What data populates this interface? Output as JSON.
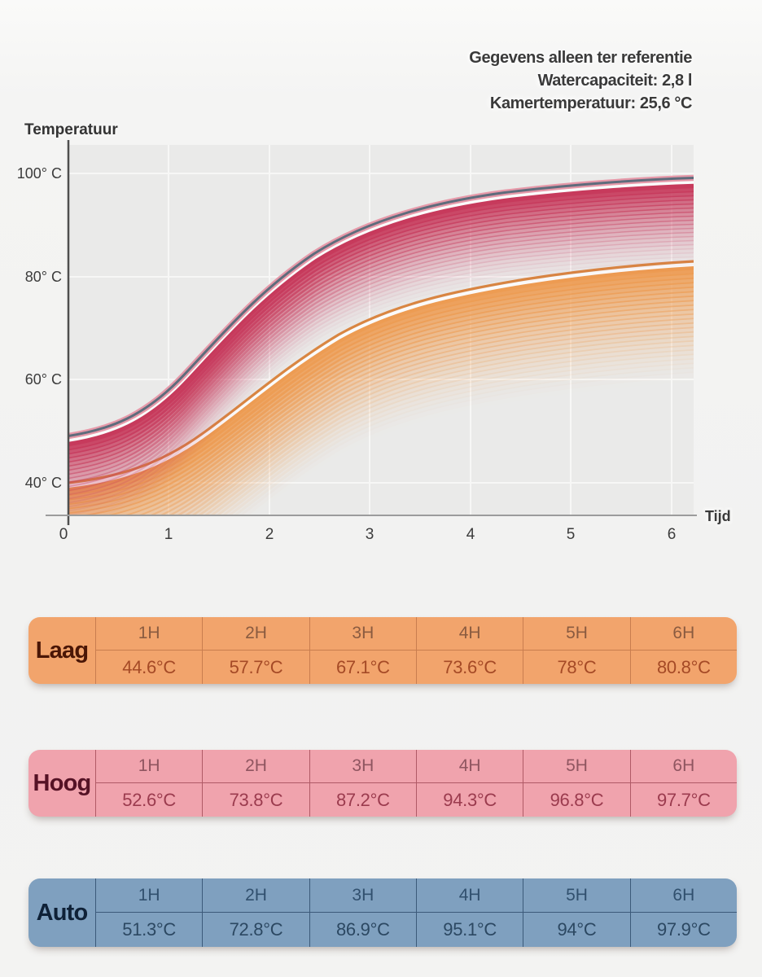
{
  "header_note": {
    "line1": "Gegevens alleen ter referentie",
    "line2": "Watercapaciteit: 2,8 l",
    "line3": "Kamertemperatuur: 25,6 °C"
  },
  "chart": {
    "y_axis_label": "Temperatuur",
    "x_axis_label": "Tijd",
    "y_ticks": [
      "100° C",
      "80° C",
      "60° C",
      "40° C"
    ],
    "x_ticks": [
      "0",
      "1",
      "2",
      "3",
      "4",
      "5",
      "6"
    ]
  },
  "chart_data": {
    "type": "line",
    "xlabel": "Tijd",
    "ylabel": "Temperatuur",
    "x_hours": [
      1,
      2,
      3,
      4,
      5,
      6
    ],
    "x_axis_range": [
      0,
      6
    ],
    "y_tick_values_c": [
      100,
      80,
      60,
      40
    ],
    "grid": true,
    "legend_position": "none",
    "series": [
      {
        "name": "Laag",
        "color": "#ED9C53",
        "line_color": "#D98743",
        "values_c": [
          44.6,
          57.7,
          67.1,
          73.6,
          78,
          80.8
        ]
      },
      {
        "name": "Hoog",
        "color": "#C73A5C",
        "line_color": "#C73A5C",
        "values_c": [
          52.6,
          73.8,
          87.2,
          94.3,
          96.8,
          97.7
        ]
      },
      {
        "name": "Auto",
        "color": "#5E6C7C",
        "halo_color": "#E699A9",
        "values_c": [
          51.3,
          72.8,
          86.9,
          95.1,
          94,
          97.9
        ]
      }
    ]
  },
  "tables": [
    {
      "label": "Laag",
      "times": [
        "1H",
        "2H",
        "3H",
        "4H",
        "5H",
        "6H"
      ],
      "values": [
        "44.6°C",
        "57.7°C",
        "67.1°C",
        "73.6°C",
        "78°C",
        "80.8°C"
      ],
      "colors": {
        "bg": "#F2A46C",
        "line": "#C97D4F",
        "label": "#4A1606",
        "header": "#8A5B40",
        "value": "#A54A26"
      }
    },
    {
      "label": "Hoog",
      "times": [
        "1H",
        "2H",
        "3H",
        "4H",
        "5H",
        "6H"
      ],
      "values": [
        "52.6°C",
        "73.8°C",
        "87.2°C",
        "94.3°C",
        "96.8°C",
        "97.7°C"
      ],
      "colors": {
        "bg": "#F0A3AD",
        "line": "#B05A66",
        "label": "#551225",
        "header": "#8F5560",
        "value": "#9B3B4E"
      }
    },
    {
      "label": "Auto",
      "times": [
        "1H",
        "2H",
        "3H",
        "4H",
        "5H",
        "6H"
      ],
      "values": [
        "51.3°C",
        "72.8°C",
        "86.9°C",
        "95.1°C",
        "94°C",
        "97.9°C"
      ],
      "colors": {
        "bg": "#7FA0BF",
        "line": "#3C5A7A",
        "label": "#0F2137",
        "header": "#31506E",
        "value": "#2C4862"
      }
    }
  ]
}
